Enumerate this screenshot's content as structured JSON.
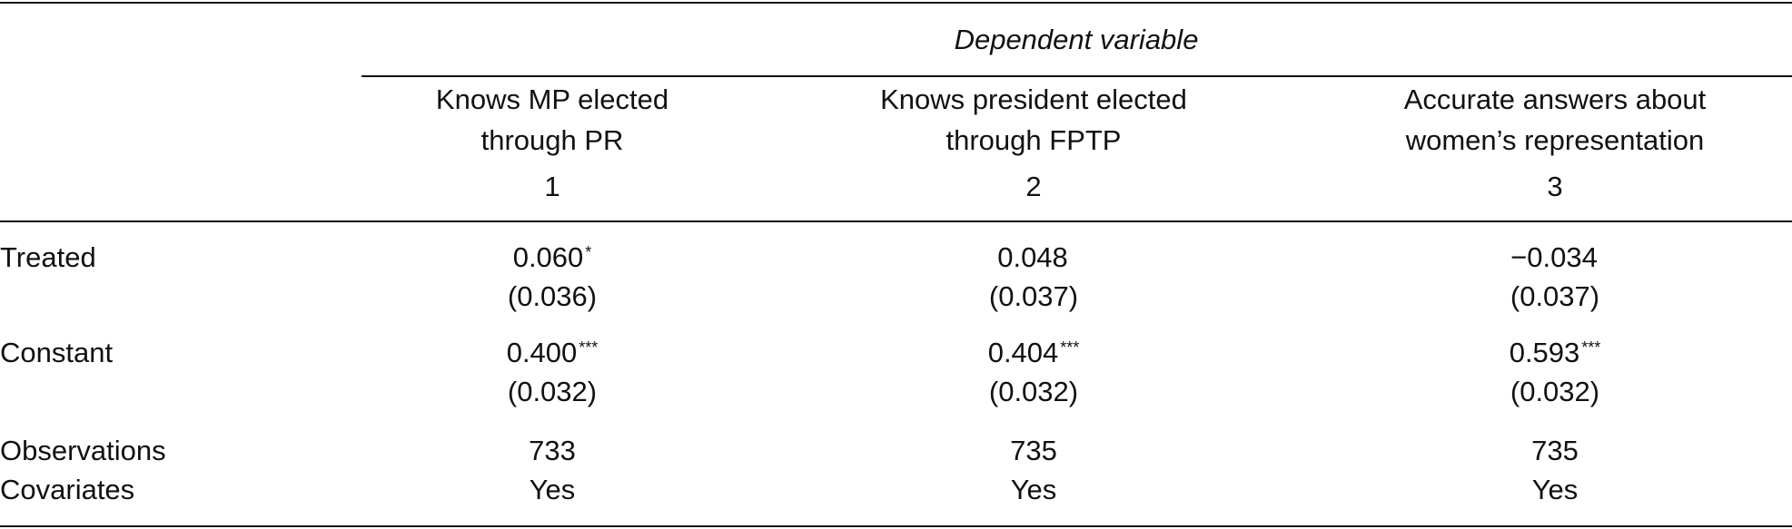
{
  "table": {
    "dep_var_label": "Dependent variable",
    "columns": [
      {
        "line1": "Knows MP elected",
        "line2": "through PR",
        "number": "1"
      },
      {
        "line1": "Knows president elected",
        "line2": "through FPTP",
        "number": "2"
      },
      {
        "line1": "Accurate answers about",
        "line2": "women’s representation",
        "number": "3"
      }
    ],
    "rows": [
      {
        "label": "Treated",
        "cells": [
          {
            "coef": "0.060",
            "stars": "*",
            "se": "(0.036)"
          },
          {
            "coef": "0.048",
            "stars": "",
            "se": "(0.037)"
          },
          {
            "coef": "−0.034",
            "stars": "",
            "se": "(0.037)"
          }
        ]
      },
      {
        "label": "Constant",
        "cells": [
          {
            "coef": "0.400",
            "stars": "***",
            "se": "(0.032)"
          },
          {
            "coef": "0.404",
            "stars": "***",
            "se": "(0.032)"
          },
          {
            "coef": "0.593",
            "stars": "***",
            "se": "(0.032)"
          }
        ]
      }
    ],
    "stats": [
      {
        "label": "Observations",
        "values": [
          "733",
          "735",
          "735"
        ]
      },
      {
        "label": "Covariates",
        "values": [
          "Yes",
          "Yes",
          "Yes"
        ]
      }
    ]
  }
}
